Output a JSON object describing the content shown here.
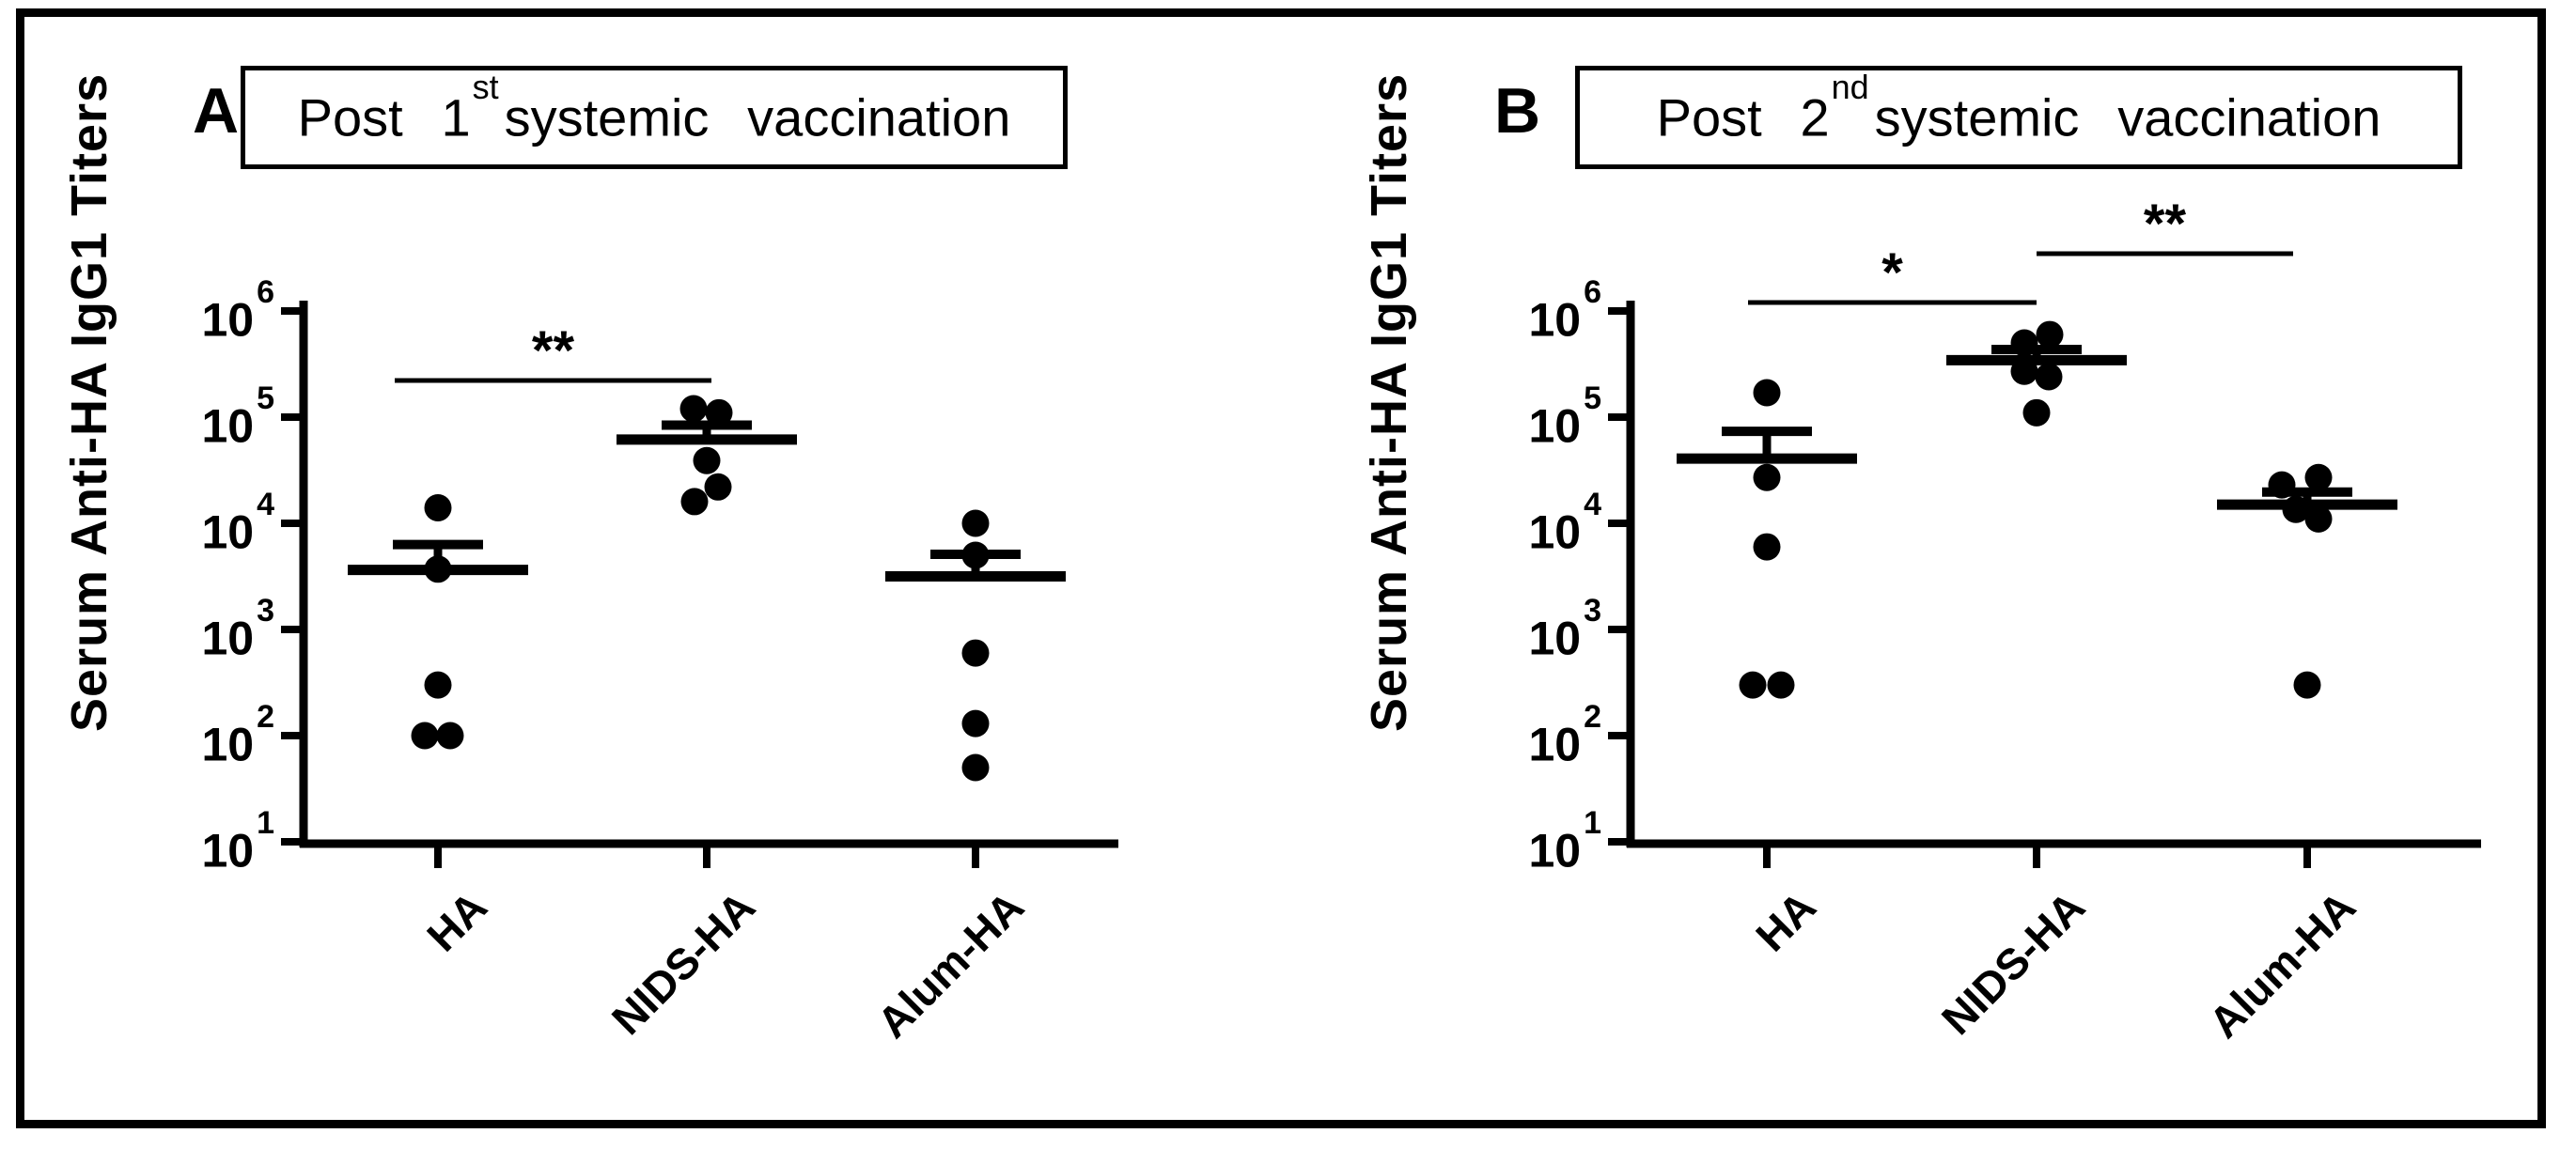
{
  "figure": {
    "background": "#ffffff",
    "ink_color": "#000000",
    "panel_letters": [
      "A",
      "B"
    ],
    "y_axis_label": "Serum Anti-HA IgG1 Titers",
    "titles": [
      {
        "prefix": "Post 1",
        "sup": "st",
        "suffix": "systemic vaccination",
        "full": "Post 1st systemic vaccination"
      },
      {
        "prefix": "Post 2",
        "sup": "nd",
        "suffix": "systemic vaccination",
        "full": "Post 2nd systemic vaccination"
      }
    ]
  },
  "chart_data": [
    {
      "type": "scatter",
      "panel": "A",
      "title": "Post 1st systemic vaccination",
      "ylabel": "Serum Anti-HA IgG1 Titers",
      "xlabel": "",
      "yscale": "log",
      "ylim": [
        10,
        1000000
      ],
      "ytick_exponents": [
        1,
        2,
        3,
        4,
        5,
        6
      ],
      "grid": false,
      "marker": "filled-black-circle",
      "error_bar": "mean + upper SEM",
      "categories": [
        "HA",
        "NIDS-HA",
        "Alum-HA"
      ],
      "series": [
        {
          "name": "HA",
          "values": [
            14000,
            3700,
            300,
            100,
            100
          ],
          "mean": 3640,
          "sem_upper": 6300
        },
        {
          "name": "NIDS-HA",
          "values": [
            120000,
            110000,
            39000,
            22000,
            16000
          ],
          "mean": 61400,
          "sem_upper": 84000
        },
        {
          "name": "Alum-HA",
          "values": [
            10000,
            5000,
            600,
            130,
            50
          ],
          "mean": 3160,
          "sem_upper": 5100
        }
      ],
      "significance": [
        {
          "from": "HA",
          "to": "NIDS-HA",
          "label": "**"
        }
      ]
    },
    {
      "type": "scatter",
      "panel": "B",
      "title": "Post 2nd systemic vaccination",
      "ylabel": "Serum Anti-HA IgG1 Titers",
      "xlabel": "",
      "yscale": "log",
      "ylim": [
        10,
        1000000
      ],
      "ytick_exponents": [
        1,
        2,
        3,
        4,
        5,
        6
      ],
      "grid": false,
      "marker": "filled-black-circle",
      "error_bar": "mean + upper SEM",
      "categories": [
        "HA",
        "NIDS-HA",
        "Alum-HA"
      ],
      "series": [
        {
          "name": "HA",
          "values": [
            170000,
            27000,
            6000,
            300,
            300
          ],
          "mean": 40700,
          "sem_upper": 73400
        },
        {
          "name": "NIDS-HA",
          "values": [
            600000,
            500000,
            270000,
            240000,
            110000
          ],
          "mean": 344000,
          "sem_upper": 434000
        },
        {
          "name": "Alum-HA",
          "values": [
            27000,
            23000,
            13500,
            11000,
            300
          ],
          "mean": 15000,
          "sem_upper": 19700
        }
      ],
      "significance": [
        {
          "from": "HA",
          "to": "NIDS-HA",
          "label": "*"
        },
        {
          "from": "NIDS-HA",
          "to": "Alum-HA",
          "label": "**"
        }
      ]
    }
  ]
}
